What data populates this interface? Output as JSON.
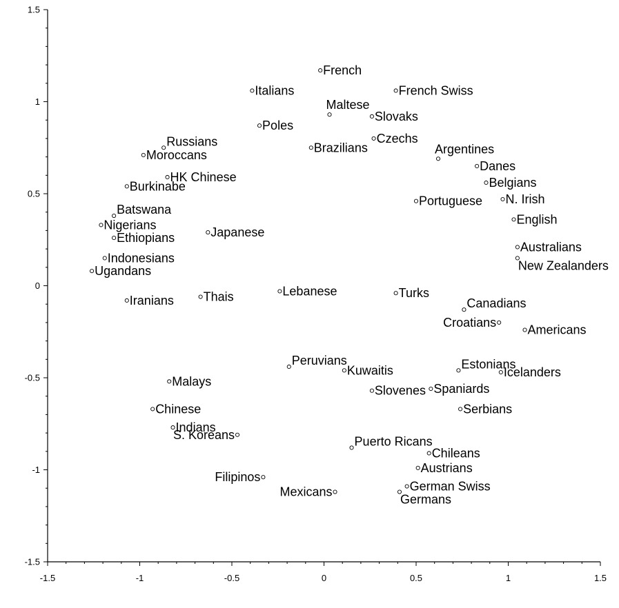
{
  "chart_data": {
    "type": "scatter",
    "title": "",
    "xlabel": "",
    "ylabel": "",
    "xlim": [
      -1.5,
      1.5
    ],
    "ylim": [
      -1.5,
      1.5
    ],
    "grid": false,
    "x_ticks": [
      -1.5,
      -1,
      -0.5,
      0,
      0.5,
      1,
      1.5
    ],
    "x_tick_labels": [
      "-1.5",
      "-1",
      "-0.5",
      "0",
      "0.5",
      "1",
      "1.5"
    ],
    "y_ticks": [
      1.5,
      1,
      0.5,
      0,
      -0.5,
      -1,
      -1.5
    ],
    "y_tick_labels": [
      "1.5",
      "1",
      "0.5",
      "0",
      "-0.5",
      "-1",
      "-1.5"
    ],
    "points": [
      {
        "label": "French",
        "x": -0.02,
        "y": 1.17,
        "anchor": "right"
      },
      {
        "label": "Italians",
        "x": -0.39,
        "y": 1.06,
        "anchor": "right"
      },
      {
        "label": "French Swiss",
        "x": 0.39,
        "y": 1.06,
        "anchor": "right"
      },
      {
        "label": "Maltese",
        "x": 0.03,
        "y": 0.93,
        "anchor": "above"
      },
      {
        "label": "Slovaks",
        "x": 0.26,
        "y": 0.92,
        "anchor": "right"
      },
      {
        "label": "Poles",
        "x": -0.35,
        "y": 0.87,
        "anchor": "right"
      },
      {
        "label": "Russians",
        "x": -0.87,
        "y": 0.75,
        "anchor": "right-up"
      },
      {
        "label": "Brazilians",
        "x": -0.07,
        "y": 0.75,
        "anchor": "right"
      },
      {
        "label": "Czechs",
        "x": 0.27,
        "y": 0.8,
        "anchor": "right"
      },
      {
        "label": "Argentines",
        "x": 0.62,
        "y": 0.69,
        "anchor": "above"
      },
      {
        "label": "Moroccans",
        "x": -0.98,
        "y": 0.71,
        "anchor": "right"
      },
      {
        "label": "Danes",
        "x": 0.83,
        "y": 0.65,
        "anchor": "right"
      },
      {
        "label": "HK Chinese",
        "x": -0.85,
        "y": 0.59,
        "anchor": "right"
      },
      {
        "label": "Belgians",
        "x": 0.88,
        "y": 0.56,
        "anchor": "right"
      },
      {
        "label": "Burkinabe",
        "x": -1.07,
        "y": 0.54,
        "anchor": "right"
      },
      {
        "label": "N. Irish",
        "x": 0.97,
        "y": 0.47,
        "anchor": "right"
      },
      {
        "label": "Portuguese",
        "x": 0.5,
        "y": 0.46,
        "anchor": "right"
      },
      {
        "label": "Batswana",
        "x": -1.14,
        "y": 0.38,
        "anchor": "right-up"
      },
      {
        "label": "English",
        "x": 1.03,
        "y": 0.36,
        "anchor": "right"
      },
      {
        "label": "Nigerians",
        "x": -1.21,
        "y": 0.33,
        "anchor": "right"
      },
      {
        "label": "Japanese",
        "x": -0.63,
        "y": 0.29,
        "anchor": "right"
      },
      {
        "label": "Ethiopians",
        "x": -1.14,
        "y": 0.26,
        "anchor": "right"
      },
      {
        "label": "Australians",
        "x": 1.05,
        "y": 0.21,
        "anchor": "right"
      },
      {
        "label": "Indonesians",
        "x": -1.19,
        "y": 0.15,
        "anchor": "right"
      },
      {
        "label": "New Zealanders",
        "x": 1.05,
        "y": 0.15,
        "anchor": "right-down"
      },
      {
        "label": "Ugandans",
        "x": -1.26,
        "y": 0.08,
        "anchor": "right"
      },
      {
        "label": "Lebanese",
        "x": -0.24,
        "y": -0.03,
        "anchor": "right"
      },
      {
        "label": "Turks",
        "x": 0.39,
        "y": -0.04,
        "anchor": "right"
      },
      {
        "label": "Thais",
        "x": -0.67,
        "y": -0.06,
        "anchor": "right"
      },
      {
        "label": "Iranians",
        "x": -1.07,
        "y": -0.08,
        "anchor": "right"
      },
      {
        "label": "Canadians",
        "x": 0.76,
        "y": -0.13,
        "anchor": "right-up"
      },
      {
        "label": "Croatians",
        "x": 0.95,
        "y": -0.2,
        "anchor": "left"
      },
      {
        "label": "Americans",
        "x": 1.09,
        "y": -0.24,
        "anchor": "right"
      },
      {
        "label": "Peruvians",
        "x": -0.19,
        "y": -0.44,
        "anchor": "right-up"
      },
      {
        "label": "Estonians",
        "x": 0.73,
        "y": -0.46,
        "anchor": "right-up"
      },
      {
        "label": "Kuwaitis",
        "x": 0.11,
        "y": -0.46,
        "anchor": "right"
      },
      {
        "label": "Icelanders",
        "x": 0.96,
        "y": -0.47,
        "anchor": "right"
      },
      {
        "label": "Malays",
        "x": -0.84,
        "y": -0.52,
        "anchor": "right"
      },
      {
        "label": "Spaniards",
        "x": 0.58,
        "y": -0.56,
        "anchor": "right"
      },
      {
        "label": "Slovenes",
        "x": 0.26,
        "y": -0.57,
        "anchor": "right"
      },
      {
        "label": "Chinese",
        "x": -0.93,
        "y": -0.67,
        "anchor": "right"
      },
      {
        "label": "Serbians",
        "x": 0.74,
        "y": -0.67,
        "anchor": "right"
      },
      {
        "label": "Indians",
        "x": -0.82,
        "y": -0.77,
        "anchor": "right"
      },
      {
        "label": "S. Koreans",
        "x": -0.47,
        "y": -0.81,
        "anchor": "left"
      },
      {
        "label": "Puerto Ricans",
        "x": 0.15,
        "y": -0.88,
        "anchor": "right-up"
      },
      {
        "label": "Chileans",
        "x": 0.57,
        "y": -0.91,
        "anchor": "right"
      },
      {
        "label": "Austrians",
        "x": 0.51,
        "y": -0.99,
        "anchor": "right"
      },
      {
        "label": "Filipinos",
        "x": -0.33,
        "y": -1.04,
        "anchor": "left"
      },
      {
        "label": "German Swiss",
        "x": 0.45,
        "y": -1.09,
        "anchor": "right"
      },
      {
        "label": "Mexicans",
        "x": 0.06,
        "y": -1.12,
        "anchor": "left"
      },
      {
        "label": "Germans",
        "x": 0.41,
        "y": -1.12,
        "anchor": "right-down"
      }
    ]
  }
}
